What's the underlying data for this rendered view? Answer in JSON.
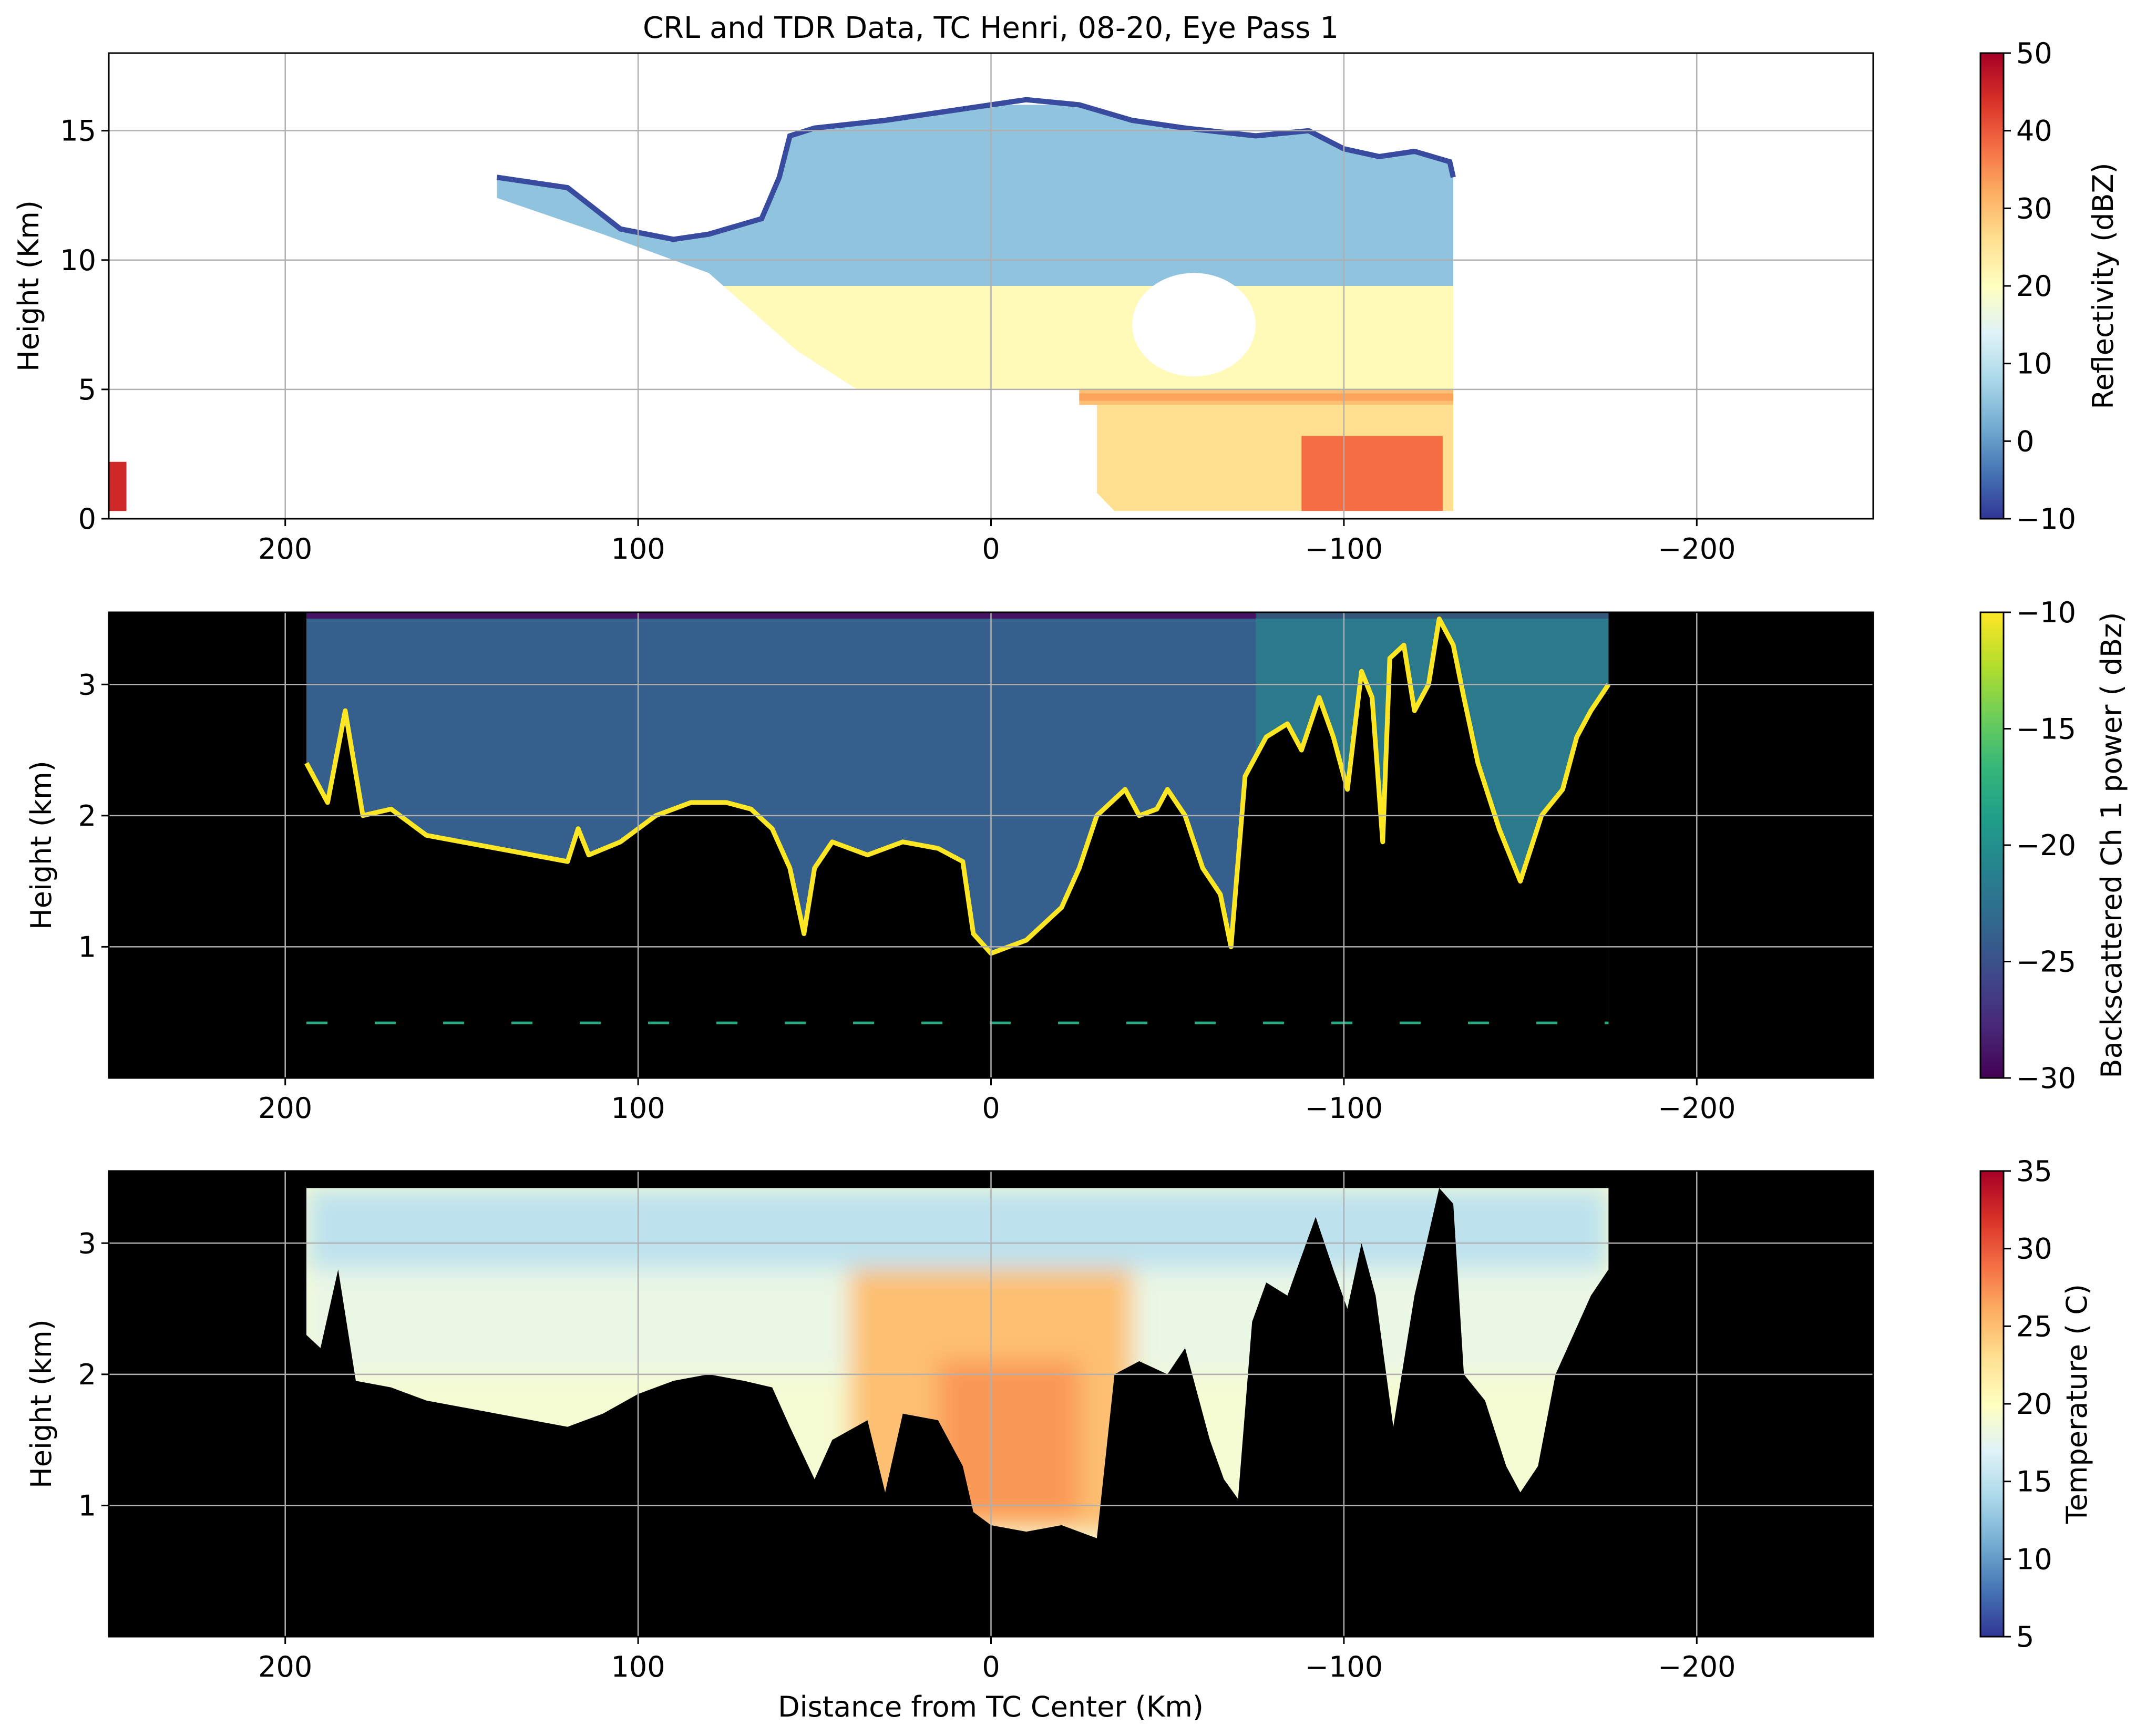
{
  "figure": {
    "title": "CRL and TDR Data, TC Henri, 08-20, Eye Pass 1",
    "xlabel": "Distance from TC Center (Km)"
  },
  "chart_data": [
    {
      "type": "heatmap",
      "ylabel": "Height (Km)",
      "xlim": [
        250,
        -250
      ],
      "ylim": [
        0,
        18
      ],
      "xticks": [
        200,
        100,
        0,
        -100,
        -200
      ],
      "xtick_labels": [
        "200",
        "100",
        "0",
        "−100",
        "−200"
      ],
      "yticks": [
        0,
        5,
        10,
        15
      ],
      "ytick_labels": [
        "0",
        "5",
        "10",
        "15"
      ],
      "grid": true,
      "background": "#ffffff",
      "colorbar": {
        "label": "Reflectivity (dBZ)",
        "range": [
          -10,
          50
        ],
        "ticks": [
          -10,
          0,
          10,
          20,
          30,
          40,
          50
        ],
        "tick_labels": [
          "−10",
          "0",
          "10",
          "20",
          "30",
          "40",
          "50"
        ],
        "colormap": "RdYlBu_r",
        "stops": [
          "#313695",
          "#4575b4",
          "#74add1",
          "#abd9e9",
          "#e0f3f8",
          "#ffffbf",
          "#fee090",
          "#fdae61",
          "#f46d43",
          "#d73027",
          "#a50026"
        ]
      },
      "echo_top": [
        [
          140,
          13.2
        ],
        [
          120,
          12.8
        ],
        [
          105,
          11.2
        ],
        [
          90,
          10.8
        ],
        [
          80,
          11.0
        ],
        [
          65,
          11.6
        ],
        [
          60,
          13.2
        ],
        [
          57,
          14.8
        ],
        [
          50,
          15.1
        ],
        [
          30,
          15.4
        ],
        [
          10,
          15.8
        ],
        [
          0,
          16.0
        ],
        [
          -10,
          16.2
        ],
        [
          -25,
          16.0
        ],
        [
          -40,
          15.4
        ],
        [
          -55,
          15.1
        ],
        [
          -75,
          14.8
        ],
        [
          -90,
          15.0
        ],
        [
          -100,
          14.3
        ],
        [
          -110,
          14.0
        ],
        [
          -120,
          14.2
        ],
        [
          -130,
          13.8
        ],
        [
          -131,
          13.2
        ]
      ],
      "echo_base": [
        [
          140,
          12.4
        ],
        [
          110,
          11.0
        ],
        [
          90,
          10.0
        ],
        [
          80,
          9.5
        ],
        [
          55,
          6.5
        ],
        [
          38,
          5.0
        ],
        [
          20,
          4.2
        ],
        [
          0,
          3.2
        ],
        [
          -30,
          1.0
        ],
        [
          -35,
          0.3
        ],
        [
          -131,
          0.3
        ]
      ],
      "bright_band_km": 4.7,
      "reflectivity_regions_dbz": [
        {
          "name": "anvil",
          "x": [
            140,
            -131
          ],
          "z": [
            9,
            16
          ],
          "dbz": 5
        },
        {
          "name": "mid-level",
          "x": [
            90,
            -131
          ],
          "z": [
            5,
            9
          ],
          "dbz": 21
        },
        {
          "name": "bright band",
          "x": [
            -25,
            -131
          ],
          "z": [
            4.4,
            5
          ],
          "dbz": 30
        },
        {
          "name": "rain",
          "x": [
            -30,
            -131
          ],
          "z": [
            0.3,
            4.4
          ],
          "dbz": 26
        },
        {
          "name": "convective cores",
          "x": [
            -88,
            -128
          ],
          "z": [
            0.3,
            3.2
          ],
          "dbz": 38
        },
        {
          "name": "cell near 240 km",
          "x": [
            250,
            245
          ],
          "z": [
            0.3,
            2.2
          ],
          "dbz": 45
        }
      ],
      "eye_void": {
        "x": [
          -40,
          -75
        ],
        "z": [
          5.5,
          9.5
        ]
      }
    },
    {
      "type": "heatmap",
      "ylabel": "Height (km)",
      "xlim": [
        250,
        -250
      ],
      "ylim": [
        0,
        3.55
      ],
      "xticks": [
        200,
        100,
        0,
        -100,
        -200
      ],
      "xtick_labels": [
        "200",
        "100",
        "0",
        "−100",
        "−200"
      ],
      "yticks": [
        1,
        2,
        3
      ],
      "ytick_labels": [
        "1",
        "2",
        "3"
      ],
      "grid": true,
      "background": "#000000",
      "data_extent_x": [
        194,
        -175
      ],
      "colorbar": {
        "label": "Backscattered Ch 1 power ( dBz)",
        "range": [
          -30,
          -10
        ],
        "ticks": [
          -30,
          -25,
          -20,
          -15,
          -10
        ],
        "tick_labels": [
          "−30",
          "−25",
          "−20",
          "−15",
          "−10"
        ],
        "colormap": "viridis",
        "stops": [
          "#440154",
          "#482878",
          "#3e4989",
          "#31688e",
          "#26828e",
          "#1f9e89",
          "#35b779",
          "#6ece58",
          "#b5de2b",
          "#fde725"
        ]
      },
      "clear_air_power_dbz": -24,
      "cloud_top_km": [
        [
          194,
          2.4
        ],
        [
          188,
          2.1
        ],
        [
          183,
          2.8
        ],
        [
          178,
          2.0
        ],
        [
          170,
          2.05
        ],
        [
          160,
          1.85
        ],
        [
          150,
          1.8
        ],
        [
          140,
          1.75
        ],
        [
          130,
          1.7
        ],
        [
          120,
          1.65
        ],
        [
          117,
          1.9
        ],
        [
          114,
          1.7
        ],
        [
          105,
          1.8
        ],
        [
          95,
          2.0
        ],
        [
          85,
          2.1
        ],
        [
          75,
          2.1
        ],
        [
          68,
          2.05
        ],
        [
          62,
          1.9
        ],
        [
          57,
          1.6
        ],
        [
          53,
          1.1
        ],
        [
          50,
          1.6
        ],
        [
          45,
          1.8
        ],
        [
          35,
          1.7
        ],
        [
          25,
          1.8
        ],
        [
          15,
          1.75
        ],
        [
          8,
          1.65
        ],
        [
          5,
          1.1
        ],
        [
          0,
          0.95
        ],
        [
          -10,
          1.05
        ],
        [
          -20,
          1.3
        ],
        [
          -25,
          1.6
        ],
        [
          -30,
          2.0
        ],
        [
          -38,
          2.2
        ],
        [
          -42,
          2.0
        ],
        [
          -47,
          2.05
        ],
        [
          -50,
          2.2
        ],
        [
          -55,
          2.0
        ],
        [
          -60,
          1.6
        ],
        [
          -65,
          1.4
        ],
        [
          -68,
          1.0
        ],
        [
          -72,
          2.3
        ],
        [
          -78,
          2.6
        ],
        [
          -84,
          2.7
        ],
        [
          -88,
          2.5
        ],
        [
          -93,
          2.9
        ],
        [
          -97,
          2.6
        ],
        [
          -101,
          2.2
        ],
        [
          -105,
          3.1
        ],
        [
          -108,
          2.9
        ],
        [
          -111,
          1.8
        ],
        [
          -113,
          3.2
        ],
        [
          -117,
          3.3
        ],
        [
          -120,
          2.8
        ],
        [
          -124,
          3.0
        ],
        [
          -127,
          3.5
        ],
        [
          -131,
          3.3
        ],
        [
          -134,
          2.9
        ],
        [
          -138,
          2.4
        ],
        [
          -144,
          1.9
        ],
        [
          -150,
          1.5
        ],
        [
          -156,
          2.0
        ],
        [
          -162,
          2.2
        ],
        [
          -166,
          2.6
        ],
        [
          -170,
          2.8
        ],
        [
          -175,
          3.0
        ]
      ],
      "ground_return_km": 0.42
    },
    {
      "type": "heatmap",
      "ylabel": "Height (km)",
      "xlim": [
        250,
        -250
      ],
      "ylim": [
        0,
        3.55
      ],
      "xticks": [
        200,
        100,
        0,
        -100,
        -200
      ],
      "xtick_labels": [
        "200",
        "100",
        "0",
        "−100",
        "−200"
      ],
      "yticks": [
        1,
        2,
        3
      ],
      "ytick_labels": [
        "1",
        "2",
        "3"
      ],
      "grid": true,
      "background": "#000000",
      "data_extent_x": [
        194,
        -175
      ],
      "data_top_km": 3.42,
      "colorbar": {
        "label": "Temperature ( C)",
        "range": [
          5,
          35
        ],
        "ticks": [
          5,
          10,
          15,
          20,
          25,
          30,
          35
        ],
        "tick_labels": [
          "5",
          "10",
          "15",
          "20",
          "25",
          "30",
          "35"
        ],
        "colormap": "RdYlBu_r",
        "stops": [
          "#313695",
          "#4575b4",
          "#74add1",
          "#abd9e9",
          "#e0f3f8",
          "#ffffbf",
          "#fee090",
          "#fdae61",
          "#f46d43",
          "#d73027",
          "#a50026"
        ]
      },
      "data_bottom_km": [
        [
          194,
          2.3
        ],
        [
          190,
          2.2
        ],
        [
          185,
          2.8
        ],
        [
          180,
          1.95
        ],
        [
          170,
          1.9
        ],
        [
          160,
          1.8
        ],
        [
          150,
          1.75
        ],
        [
          140,
          1.7
        ],
        [
          130,
          1.65
        ],
        [
          120,
          1.6
        ],
        [
          110,
          1.7
        ],
        [
          100,
          1.85
        ],
        [
          90,
          1.95
        ],
        [
          80,
          2.0
        ],
        [
          70,
          1.95
        ],
        [
          62,
          1.9
        ],
        [
          57,
          1.6
        ],
        [
          50,
          1.2
        ],
        [
          45,
          1.5
        ],
        [
          35,
          1.65
        ],
        [
          30,
          1.1
        ],
        [
          25,
          1.7
        ],
        [
          15,
          1.65
        ],
        [
          8,
          1.3
        ],
        [
          5,
          0.95
        ],
        [
          0,
          0.85
        ],
        [
          -10,
          0.8
        ],
        [
          -20,
          0.85
        ],
        [
          -30,
          0.75
        ],
        [
          -35,
          2.0
        ],
        [
          -42,
          2.1
        ],
        [
          -50,
          2.0
        ],
        [
          -55,
          2.2
        ],
        [
          -62,
          1.5
        ],
        [
          -66,
          1.2
        ],
        [
          -70,
          1.05
        ],
        [
          -74,
          2.4
        ],
        [
          -78,
          2.7
        ],
        [
          -84,
          2.6
        ],
        [
          -88,
          2.9
        ],
        [
          -92,
          3.2
        ],
        [
          -97,
          2.8
        ],
        [
          -101,
          2.5
        ],
        [
          -105,
          3.0
        ],
        [
          -109,
          2.6
        ],
        [
          -114,
          1.6
        ],
        [
          -120,
          2.6
        ],
        [
          -127,
          3.42
        ],
        [
          -131,
          3.3
        ],
        [
          -134,
          2.0
        ],
        [
          -140,
          1.8
        ],
        [
          -146,
          1.3
        ],
        [
          -150,
          1.1
        ],
        [
          -155,
          1.3
        ],
        [
          -160,
          2.0
        ],
        [
          -165,
          2.3
        ],
        [
          -170,
          2.6
        ],
        [
          -175,
          2.8
        ]
      ],
      "temperature_regions_c": [
        {
          "name": "upper layer",
          "x": [
            194,
            -175
          ],
          "z": [
            2.8,
            3.42
          ],
          "t": 15
        },
        {
          "name": "mid layer",
          "x": [
            194,
            -175
          ],
          "z": [
            2.0,
            2.8
          ],
          "t": 18
        },
        {
          "name": "warm core",
          "x": [
            40,
            -40
          ],
          "z": [
            0.8,
            2.8
          ],
          "t": 25
        },
        {
          "name": "warm core center",
          "x": [
            15,
            -25
          ],
          "z": [
            0.9,
            2.1
          ],
          "t": 27
        }
      ]
    }
  ]
}
